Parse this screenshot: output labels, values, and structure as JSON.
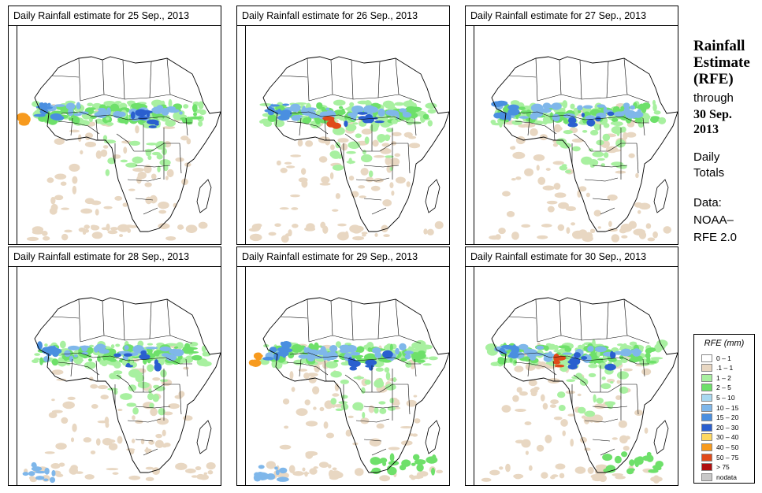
{
  "panels": [
    {
      "title": "Daily Rainfall estimate for  25 Sep., 2013",
      "day": 25
    },
    {
      "title": "Daily Rainfall estimate for  26 Sep., 2013",
      "day": 26
    },
    {
      "title": "Daily Rainfall estimate for  27 Sep., 2013",
      "day": 27
    },
    {
      "title": "Daily Rainfall estimate for  28 Sep., 2013",
      "day": 28
    },
    {
      "title": "Daily Rainfall estimate for  29 Sep., 2013",
      "day": 29
    },
    {
      "title": "Daily Rainfall estimate for  30 Sep., 2013",
      "day": 30
    }
  ],
  "side": {
    "title_line1": "Rainfall",
    "title_line2": "Estimate",
    "title_line3": "(RFE)",
    "through": "through",
    "date_line1": "30 Sep.",
    "date_line2": "2013",
    "totals_line1": "Daily",
    "totals_line2": "Totals",
    "data_label": "Data:",
    "source_line1": "NOAA–",
    "source_line2": "RFE 2.0"
  },
  "legend": {
    "title": "RFE (mm)",
    "items": [
      {
        "label": "0 – 1",
        "color": "#ffffff"
      },
      {
        "label": ".1 – 1",
        "color": "#e8d7c2"
      },
      {
        "label": "1 – 2",
        "color": "#a8f0a0"
      },
      {
        "label": "2 – 5",
        "color": "#6ee06a"
      },
      {
        "label": "5 – 10",
        "color": "#a8d8f0"
      },
      {
        "label": "10 – 15",
        "color": "#7fb7ea"
      },
      {
        "label": "15 – 20",
        "color": "#4a8fe0"
      },
      {
        "label": "20 – 30",
        "color": "#2a5fcf"
      },
      {
        "label": "30 – 40",
        "color": "#ffd860"
      },
      {
        "label": "40 – 50",
        "color": "#f79a1e"
      },
      {
        "label": "50 – 75",
        "color": "#e04a1a"
      },
      {
        "label": "> 75",
        "color": "#b01010"
      },
      {
        "label": "nodata",
        "color": "#c8c8c8"
      }
    ]
  },
  "colors": {
    "tan": "#e8d7c2",
    "light_green": "#a8f0a0",
    "green": "#6ee06a",
    "light_blue": "#7fb7ea",
    "blue": "#4a8fe0",
    "dark_blue": "#2a5fcf",
    "orange": "#f79a1e",
    "red": "#e04a1a"
  }
}
